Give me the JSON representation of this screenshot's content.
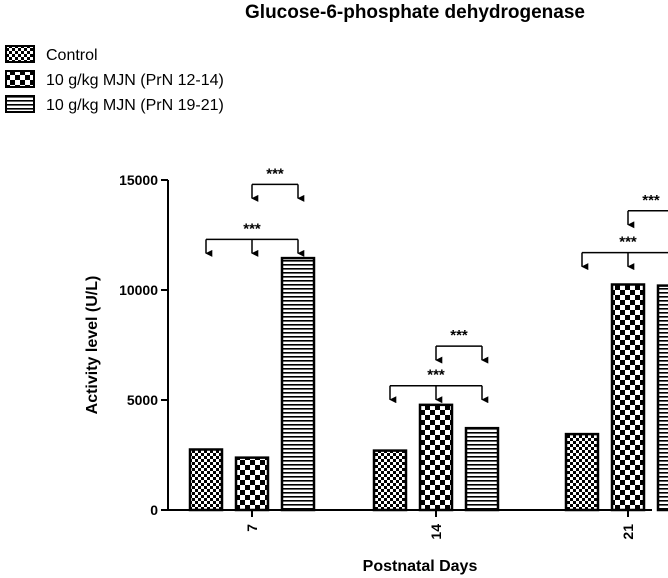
{
  "chart_data": {
    "type": "bar",
    "title": "Glucose-6-phosphate dehydrogenase",
    "xlabel": "Postnatal Days",
    "ylabel": "Activity level (U/L)",
    "categories": [
      "7",
      "14",
      "21"
    ],
    "ylim": [
      0,
      15000
    ],
    "yticks": [
      0,
      5000,
      10000,
      15000
    ],
    "legend_position": "top-left",
    "series": [
      {
        "name": "Control",
        "pattern": "checker-small",
        "values": [
          2750,
          2700,
          3450
        ]
      },
      {
        "name": "10 g/kg MJN (PrN 12-14)",
        "pattern": "checker-large",
        "values": [
          2380,
          4780,
          10250
        ]
      },
      {
        "name": "10 g/kg MJN (PrN 19-21)",
        "pattern": "horizontal-stripes",
        "values": [
          11450,
          3720,
          10200
        ]
      }
    ],
    "annotations": [
      {
        "category": "7",
        "from_series": 0,
        "to_series": 2,
        "label": "***",
        "level": 12300
      },
      {
        "category": "7",
        "from_series": 1,
        "to_series": 2,
        "label": "***",
        "level": 14800
      },
      {
        "category": "14",
        "from_series": 0,
        "to_series": 2,
        "label": "***",
        "level": 5650
      },
      {
        "category": "14",
        "from_series": 1,
        "to_series": 2,
        "label": "***",
        "level": 7450
      },
      {
        "category": "21",
        "from_series": 0,
        "to_series": 2,
        "label": "***",
        "level": 11700
      },
      {
        "category": "21",
        "from_series": 1,
        "to_series": 2,
        "label": "***",
        "level": 13600
      }
    ]
  }
}
